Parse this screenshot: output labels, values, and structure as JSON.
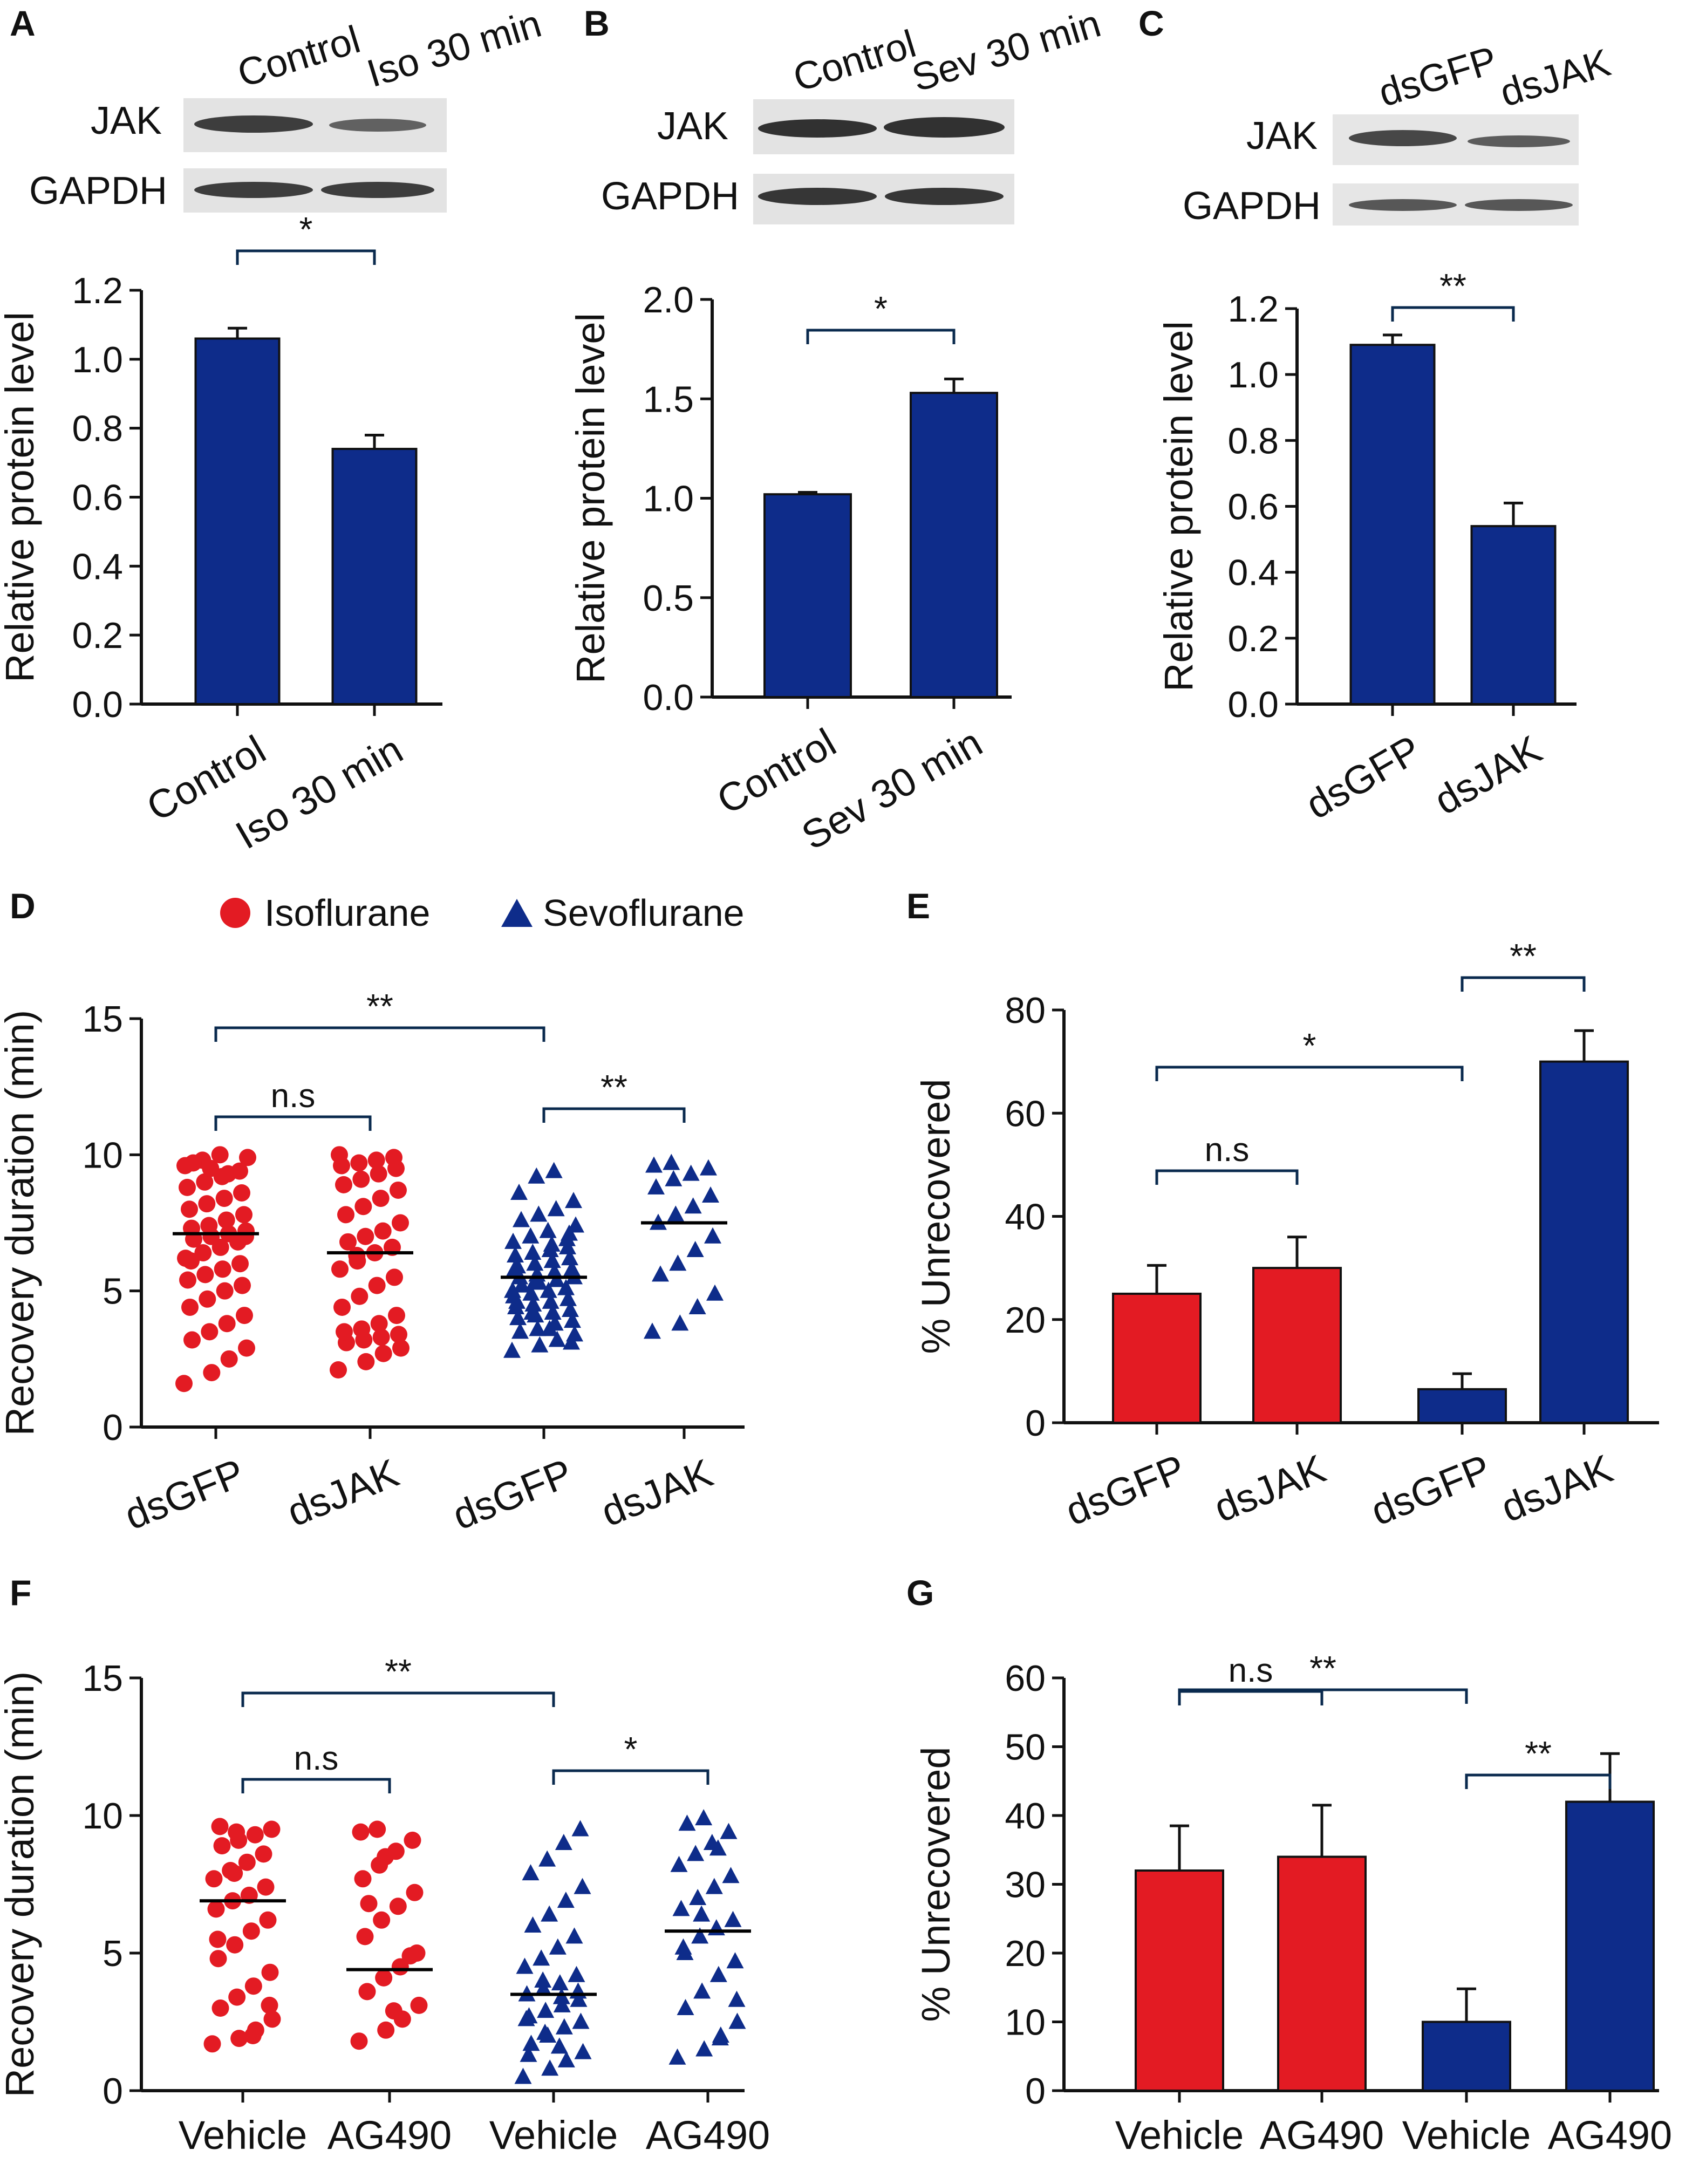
{
  "colors": {
    "red": "#e31b23",
    "blue": "#0e2c8a",
    "axis": "#111111",
    "bracket": "#0a2a4e"
  },
  "chart_data": [
    {
      "panel": "A",
      "type": "bar",
      "blot": {
        "lanes": [
          "Control",
          "Iso 30 min"
        ],
        "rows": [
          "JAK",
          "GAPDH"
        ]
      },
      "categories": [
        "Control",
        "Iso 30 min"
      ],
      "values": [
        1.06,
        0.74
      ],
      "errors": [
        0.03,
        0.04
      ],
      "colors": [
        "blue",
        "blue"
      ],
      "ylabel": "Relative protein level",
      "ylim": [
        0,
        1.2
      ],
      "yticks": [
        "0.0",
        "0.2",
        "0.4",
        "0.6",
        "0.8",
        "1.0",
        "1.2"
      ],
      "comparisons": [
        {
          "from": 0,
          "to": 1,
          "label": "*"
        }
      ]
    },
    {
      "panel": "B",
      "type": "bar",
      "blot": {
        "lanes": [
          "Control",
          "Sev 30 min"
        ],
        "rows": [
          "JAK",
          "GAPDH"
        ]
      },
      "categories": [
        "Control",
        "Sev 30 min"
      ],
      "values": [
        1.02,
        1.53
      ],
      "errors": [
        0.01,
        0.07
      ],
      "colors": [
        "blue",
        "blue"
      ],
      "ylabel": "Relative protein level",
      "ylim": [
        0,
        2.0
      ],
      "yticks": [
        "0.0",
        "0.5",
        "1.0",
        "1.5",
        "2.0"
      ],
      "comparisons": [
        {
          "from": 0,
          "to": 1,
          "label": "*"
        }
      ]
    },
    {
      "panel": "C",
      "type": "bar",
      "blot": {
        "lanes": [
          "dsGFP",
          "dsJAK"
        ],
        "rows": [
          "JAK",
          "GAPDH"
        ]
      },
      "categories": [
        "dsGFP",
        "dsJAK"
      ],
      "values": [
        1.09,
        0.54
      ],
      "errors": [
        0.03,
        0.07
      ],
      "colors": [
        "blue",
        "blue"
      ],
      "ylabel": "Relative protein level",
      "ylim": [
        0,
        1.2
      ],
      "yticks": [
        "0.0",
        "0.2",
        "0.4",
        "0.6",
        "0.8",
        "1.0",
        "1.2"
      ],
      "comparisons": [
        {
          "from": 0,
          "to": 1,
          "label": "**"
        }
      ]
    },
    {
      "panel": "D",
      "type": "scatter",
      "legend": [
        {
          "label": "Isoflurane",
          "marker": "circle",
          "color": "red"
        },
        {
          "label": "Sevoflurane",
          "marker": "triangle",
          "color": "blue"
        }
      ],
      "categories": [
        "dsGFP",
        "dsJAK",
        "dsGFP",
        "dsJAK"
      ],
      "markers": [
        "circle",
        "circle",
        "triangle",
        "triangle"
      ],
      "colors": [
        "red",
        "red",
        "blue",
        "blue"
      ],
      "medians": [
        7.1,
        6.4,
        5.5,
        7.5
      ],
      "points": [
        [
          1.6,
          2.0,
          2.5,
          2.9,
          3.2,
          3.5,
          3.8,
          4.1,
          4.4,
          4.7,
          5.0,
          5.2,
          5.4,
          5.6,
          5.8,
          6.0,
          6.2,
          6.4,
          6.6,
          6.8,
          6.9,
          7.0,
          7.1,
          7.2,
          7.3,
          7.4,
          7.6,
          7.8,
          8.0,
          8.2,
          8.4,
          8.6,
          8.8,
          9.0,
          9.2,
          9.4,
          9.6,
          9.8,
          10.0,
          9.9,
          9.7,
          9.5,
          9.3,
          7.0,
          6.1
        ],
        [
          2.1,
          2.4,
          2.7,
          2.9,
          3.1,
          3.2,
          3.3,
          3.4,
          3.5,
          3.6,
          3.8,
          4.1,
          4.4,
          4.8,
          5.2,
          5.5,
          5.8,
          6.1,
          6.4,
          6.6,
          6.8,
          7.0,
          7.2,
          7.5,
          7.8,
          8.1,
          8.4,
          8.7,
          8.9,
          9.1,
          9.3,
          9.5,
          9.6,
          9.7,
          9.8,
          9.9,
          10.0,
          6.3
        ],
        [
          2.8,
          3.0,
          3.2,
          3.4,
          3.5,
          3.6,
          3.8,
          3.9,
          4.0,
          4.1,
          4.2,
          4.3,
          4.4,
          4.5,
          4.6,
          4.7,
          4.8,
          4.9,
          5.0,
          5.1,
          5.2,
          5.3,
          5.4,
          5.5,
          5.5,
          5.6,
          5.7,
          5.8,
          5.9,
          6.0,
          6.1,
          6.2,
          6.3,
          6.4,
          6.5,
          6.6,
          6.8,
          7.0,
          7.2,
          7.4,
          7.6,
          7.8,
          8.0,
          8.3,
          8.6,
          9.2,
          9.4,
          3.1,
          4.6,
          5.3,
          6.7,
          7.1,
          5.8,
          4.2,
          3.6,
          6.9,
          5.0
        ],
        [
          3.5,
          3.8,
          4.4,
          4.9,
          5.6,
          6.0,
          6.5,
          7.0,
          7.5,
          7.8,
          8.1,
          8.5,
          8.8,
          9.1,
          9.3,
          9.5,
          9.6,
          9.7
        ]
      ],
      "ylabel": "Recovery duration (min)",
      "ylim": [
        0,
        15
      ],
      "yticks": [
        "0",
        "5",
        "10",
        "15"
      ],
      "comparisons": [
        {
          "from": 0,
          "to": 2,
          "label": "**"
        },
        {
          "from": 0,
          "to": 1,
          "label": "n.s"
        },
        {
          "from": 2,
          "to": 3,
          "label": "**"
        }
      ]
    },
    {
      "panel": "E",
      "type": "bar",
      "categories": [
        "dsGFP",
        "dsJAK",
        "dsGFP",
        "dsJAK"
      ],
      "values": [
        25,
        30,
        6.5,
        70
      ],
      "errors": [
        5.5,
        6,
        3,
        6
      ],
      "colors": [
        "red",
        "red",
        "blue",
        "blue"
      ],
      "ylabel": "% Unrecovered",
      "ylim": [
        0,
        80
      ],
      "yticks": [
        "0",
        "20",
        "40",
        "60",
        "80"
      ],
      "comparisons": [
        {
          "from": 2,
          "to": 3,
          "label": "**"
        },
        {
          "from": 0,
          "to": 2,
          "label": "*"
        },
        {
          "from": 0,
          "to": 1,
          "label": "n.s"
        }
      ]
    },
    {
      "panel": "F",
      "type": "scatter",
      "categories": [
        "Vehicle",
        "AG490",
        "Vehicle",
        "AG490"
      ],
      "markers": [
        "circle",
        "circle",
        "triangle",
        "triangle"
      ],
      "colors": [
        "red",
        "red",
        "blue",
        "blue"
      ],
      "medians": [
        6.9,
        4.4,
        3.5,
        5.8
      ],
      "points": [
        [
          1.7,
          1.9,
          2.2,
          2.6,
          3.0,
          3.4,
          3.8,
          4.3,
          4.8,
          5.3,
          5.8,
          6.2,
          6.6,
          6.9,
          7.1,
          7.4,
          7.7,
          8.0,
          8.3,
          8.6,
          8.9,
          9.1,
          9.3,
          9.5,
          9.6,
          9.4,
          2.0,
          3.1,
          5.5,
          7.9
        ],
        [
          1.8,
          2.2,
          2.6,
          3.1,
          3.6,
          4.1,
          4.5,
          5.0,
          5.6,
          6.2,
          6.7,
          7.2,
          7.7,
          8.2,
          8.7,
          9.1,
          9.4,
          9.5,
          2.9,
          4.9,
          6.8,
          8.5
        ],
        [
          0.5,
          0.8,
          1.1,
          1.4,
          1.7,
          2.0,
          2.3,
          2.5,
          2.7,
          2.9,
          3.1,
          3.3,
          3.5,
          3.7,
          3.9,
          4.2,
          4.5,
          4.8,
          5.2,
          5.6,
          6.0,
          6.4,
          6.9,
          7.4,
          7.9,
          8.4,
          9.0,
          9.5,
          1.3,
          2.1,
          3.4,
          3.6,
          2.6,
          4.0,
          1.6
        ],
        [
          1.2,
          1.5,
          2.0,
          2.5,
          3.0,
          3.6,
          4.2,
          4.7,
          5.2,
          5.6,
          5.9,
          6.2,
          6.6,
          7.0,
          7.4,
          7.8,
          8.2,
          8.6,
          9.0,
          9.4,
          9.7,
          9.9,
          1.9,
          3.3,
          5.0,
          6.4,
          8.8
        ]
      ],
      "ylabel": "Recovery duration (min)",
      "ylim": [
        0,
        15
      ],
      "yticks": [
        "0",
        "5",
        "10",
        "15"
      ],
      "comparisons": [
        {
          "from": 0,
          "to": 2,
          "label": "**"
        },
        {
          "from": 0,
          "to": 1,
          "label": "n.s"
        },
        {
          "from": 2,
          "to": 3,
          "label": "*"
        }
      ]
    },
    {
      "panel": "G",
      "type": "bar",
      "categories": [
        "Vehicle",
        "AG490",
        "Vehicle",
        "AG490"
      ],
      "values": [
        32,
        34,
        10,
        42
      ],
      "errors": [
        6.5,
        7.5,
        4.8,
        7
      ],
      "colors": [
        "red",
        "red",
        "blue",
        "blue"
      ],
      "ylabel": "% Unrecovered",
      "ylim": [
        0,
        60
      ],
      "yticks": [
        "0",
        "10",
        "20",
        "30",
        "40",
        "50",
        "60"
      ],
      "comparisons": [
        {
          "from": 0,
          "to": 2,
          "label": "**"
        },
        {
          "from": 2,
          "to": 3,
          "label": "**"
        },
        {
          "from": 0,
          "to": 1,
          "label": "n.s"
        }
      ]
    }
  ]
}
